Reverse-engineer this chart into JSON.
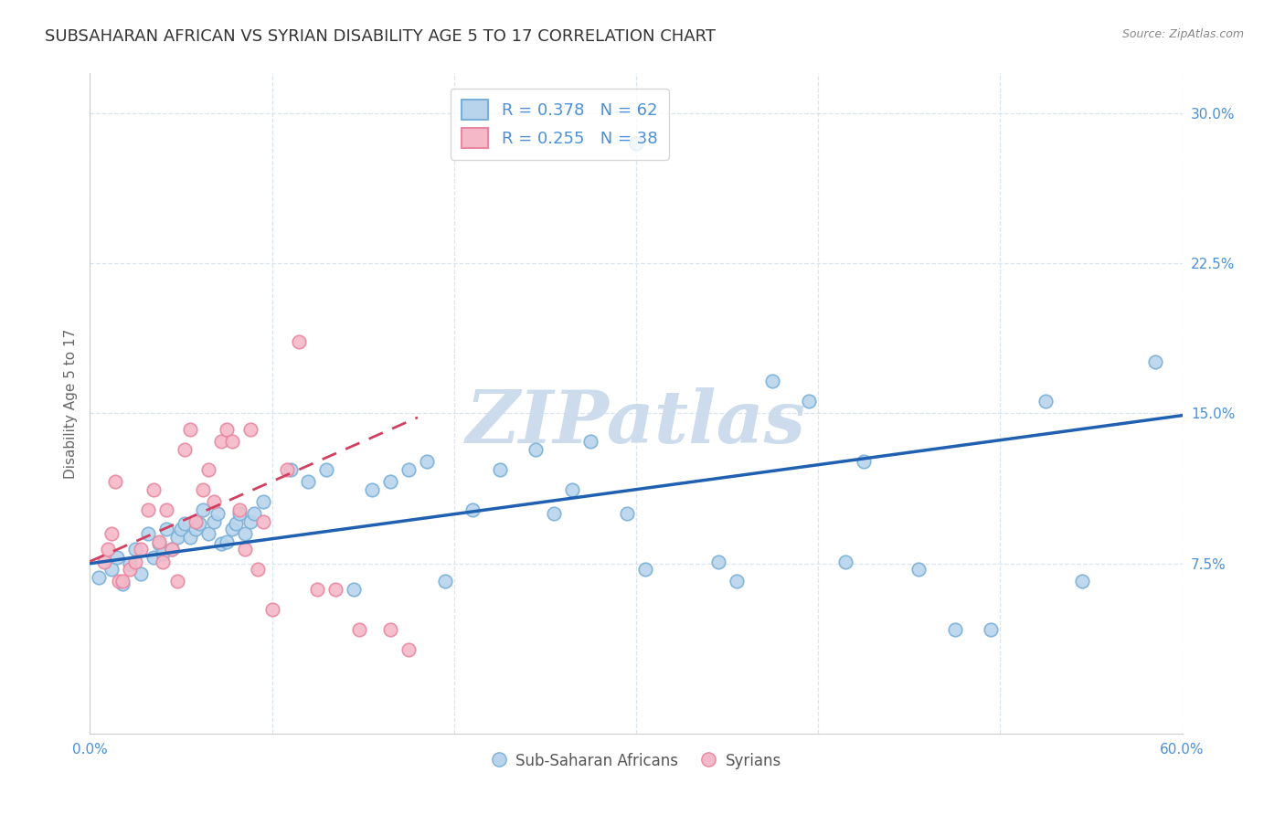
{
  "title": "SUBSAHARAN AFRICAN VS SYRIAN DISABILITY AGE 5 TO 17 CORRELATION CHART",
  "source": "Source: ZipAtlas.com",
  "ylabel": "Disability Age 5 to 17",
  "xlim": [
    0.0,
    0.6
  ],
  "ylim": [
    -0.01,
    0.32
  ],
  "xticks": [
    0.0,
    0.1,
    0.2,
    0.3,
    0.4,
    0.5,
    0.6
  ],
  "xtick_show": [
    0.0,
    0.6
  ],
  "xtick_labels_show": [
    "0.0%",
    "60.0%"
  ],
  "yticks": [
    0.075,
    0.15,
    0.225,
    0.3
  ],
  "ytick_labels": [
    "7.5%",
    "15.0%",
    "22.5%",
    "30.0%"
  ],
  "blue_color": "#b8d4ec",
  "blue_marker_edge": "#7ab0d8",
  "pink_color": "#f5b8c8",
  "pink_marker_edge": "#e888a0",
  "blue_line_color": "#2060b0",
  "pink_line_color": "#d04060",
  "grid_color": "#d8e4f0",
  "watermark_color": "#ccdcec",
  "legend_blue_label": "R = 0.378   N = 62",
  "legend_pink_label": "R = 0.255   N = 38",
  "legend_bottom_blue": "Sub-Saharan Africans",
  "legend_bottom_pink": "Syrians",
  "blue_scatter_x": [
    0.3,
    0.005,
    0.012,
    0.015,
    0.018,
    0.022,
    0.025,
    0.028,
    0.032,
    0.035,
    0.038,
    0.04,
    0.042,
    0.045,
    0.048,
    0.05,
    0.052,
    0.055,
    0.058,
    0.06,
    0.062,
    0.065,
    0.068,
    0.07,
    0.072,
    0.075,
    0.078,
    0.08,
    0.082,
    0.085,
    0.088,
    0.09,
    0.095,
    0.11,
    0.12,
    0.13,
    0.145,
    0.155,
    0.165,
    0.175,
    0.185,
    0.195,
    0.21,
    0.225,
    0.245,
    0.255,
    0.265,
    0.275,
    0.295,
    0.305,
    0.345,
    0.355,
    0.375,
    0.395,
    0.415,
    0.425,
    0.455,
    0.475,
    0.495,
    0.525,
    0.545,
    0.585
  ],
  "blue_scatter_y": [
    0.285,
    0.068,
    0.072,
    0.078,
    0.065,
    0.075,
    0.082,
    0.07,
    0.09,
    0.078,
    0.085,
    0.08,
    0.092,
    0.082,
    0.088,
    0.092,
    0.095,
    0.088,
    0.092,
    0.095,
    0.102,
    0.09,
    0.096,
    0.1,
    0.085,
    0.086,
    0.092,
    0.095,
    0.1,
    0.09,
    0.096,
    0.1,
    0.106,
    0.122,
    0.116,
    0.122,
    0.062,
    0.112,
    0.116,
    0.122,
    0.126,
    0.066,
    0.102,
    0.122,
    0.132,
    0.1,
    0.112,
    0.136,
    0.1,
    0.072,
    0.076,
    0.066,
    0.166,
    0.156,
    0.076,
    0.126,
    0.072,
    0.042,
    0.042,
    0.156,
    0.066,
    0.176
  ],
  "pink_scatter_x": [
    0.008,
    0.01,
    0.012,
    0.014,
    0.016,
    0.018,
    0.022,
    0.025,
    0.028,
    0.032,
    0.035,
    0.038,
    0.04,
    0.042,
    0.045,
    0.048,
    0.052,
    0.055,
    0.058,
    0.062,
    0.065,
    0.068,
    0.072,
    0.075,
    0.078,
    0.082,
    0.085,
    0.088,
    0.092,
    0.095,
    0.1,
    0.108,
    0.115,
    0.125,
    0.135,
    0.148,
    0.165,
    0.175
  ],
  "pink_scatter_y": [
    0.076,
    0.082,
    0.09,
    0.116,
    0.066,
    0.066,
    0.072,
    0.076,
    0.082,
    0.102,
    0.112,
    0.086,
    0.076,
    0.102,
    0.082,
    0.066,
    0.132,
    0.142,
    0.096,
    0.112,
    0.122,
    0.106,
    0.136,
    0.142,
    0.136,
    0.102,
    0.082,
    0.142,
    0.072,
    0.096,
    0.052,
    0.122,
    0.186,
    0.062,
    0.062,
    0.042,
    0.042,
    0.032
  ],
  "blue_line_x": [
    0.0,
    0.6
  ],
  "blue_line_y": [
    0.075,
    0.149
  ],
  "pink_line_x": [
    0.0,
    0.18
  ],
  "pink_line_y": [
    0.076,
    0.148
  ],
  "background_color": "#ffffff",
  "title_fontsize": 13,
  "axis_label_fontsize": 11,
  "tick_fontsize": 11,
  "legend_fontsize": 13
}
